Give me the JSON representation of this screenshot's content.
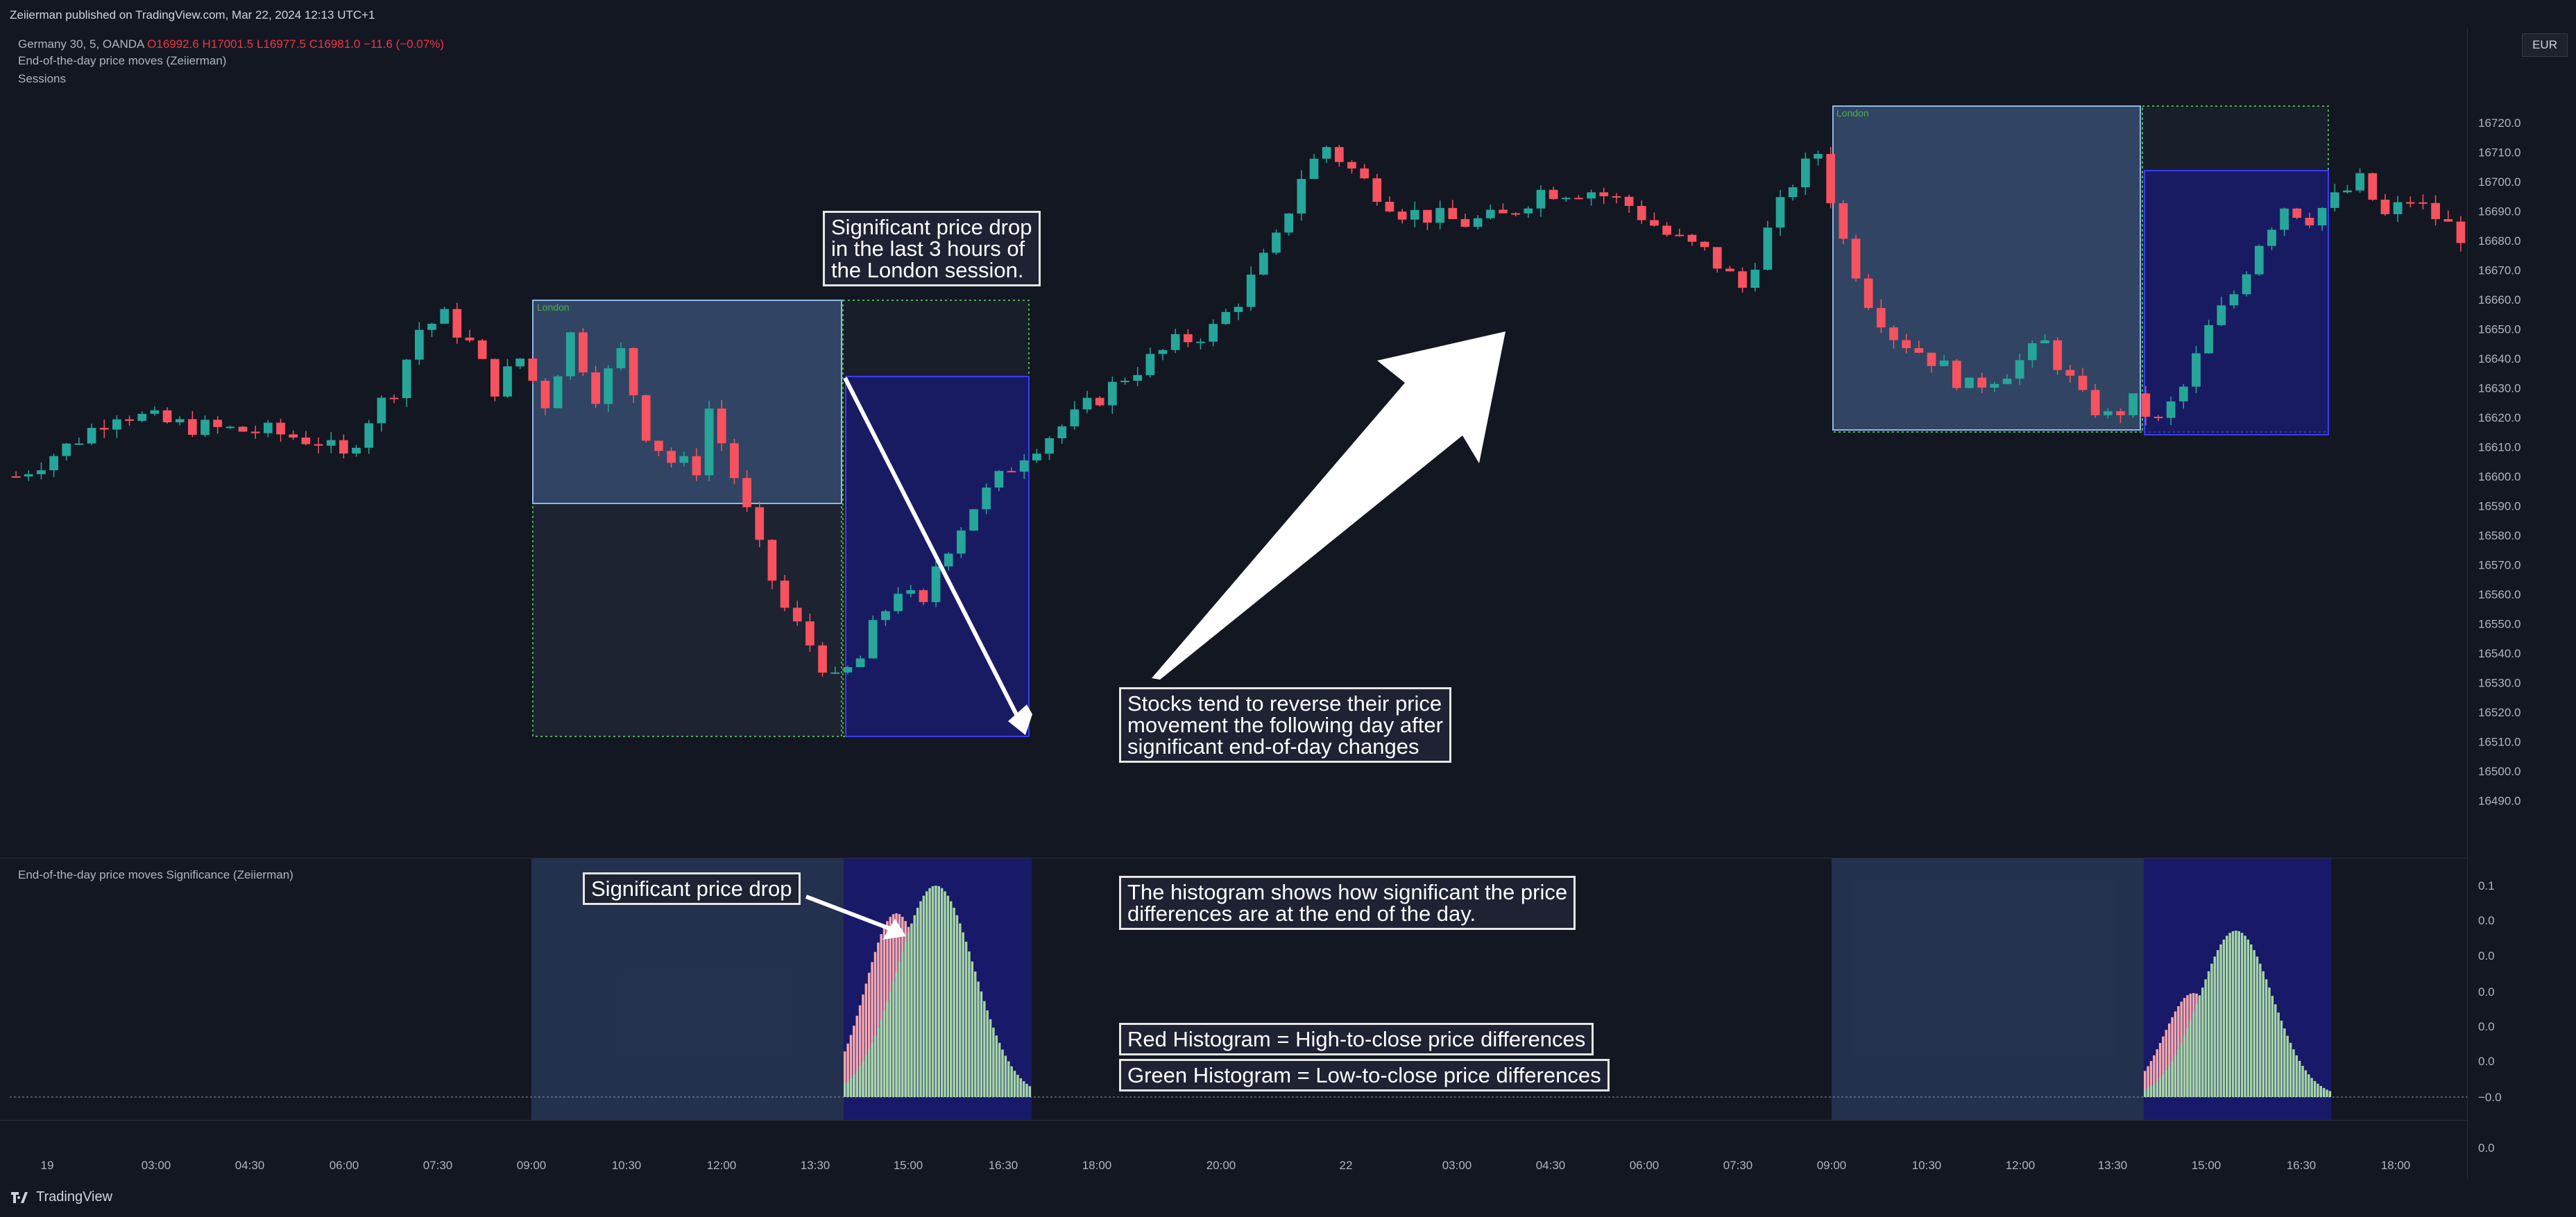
{
  "header": {
    "published": "Zeiierman published on TradingView.com, Mar 22, 2024 12:13 UTC+1"
  },
  "legend": {
    "symbol": "Germany 30, 5, OANDA",
    "ohlc": "O16992.6 H17001.5 L16977.5 C16981.0 −11.6 (−0.07%)",
    "indicator1": "End-of-the-day price moves (Zeiierman)",
    "indicator2": "Sessions",
    "pane2_title": "End-of-the-day price moves Significance (Zeiierman)"
  },
  "currency": "EUR",
  "annotations": {
    "drop3h": "Significant price drop\nin the last 3 hours of\nthe London session.",
    "reverse": "Stocks tend to reverse their price\nmovement the following day after\nsignificant end-of-day changes",
    "sigdrop": "Significant price drop",
    "histo_explain": "The histogram shows how significant the price\ndifferences are at the end of the day.",
    "red_histo": "Red Histogram =  High-to-close price differences",
    "green_histo": "Green Histogram =  Low-to-close price differences"
  },
  "brand": {
    "name": "TradingView"
  },
  "colors": {
    "bg": "#131722",
    "up": "#26a69a",
    "down": "#f7525f",
    "session_box": "#3f5a85",
    "session_box_border": "#8fb8e6",
    "blue_box": "#1a1a7a",
    "blue_box_border": "#3a3aff",
    "hist_green": "#a5d6a7",
    "hist_red": "#f4a6ae",
    "session_label": "#4caf50"
  },
  "chart_data": [
    {
      "type": "candlestick",
      "title": "",
      "ylabel": "",
      "y_ticks": [
        "16720.0",
        "16710.0",
        "16700.0",
        "16690.0",
        "16680.0",
        "16670.0",
        "16660.0",
        "16650.0",
        "16640.0",
        "16630.0",
        "16620.0",
        "16610.0",
        "16600.0",
        "16590.0",
        "16580.0",
        "16570.0",
        "16560.0",
        "16550.0",
        "16540.0",
        "16530.0",
        "16520.0",
        "16510.0",
        "16500.0",
        "16490.0"
      ],
      "ylim": [
        16487,
        16728
      ],
      "x_ticks": [
        "19",
        "03:00",
        "04:30",
        "06:00",
        "07:30",
        "09:00",
        "10:30",
        "12:00",
        "13:30",
        "15:00",
        "16:30",
        "18:00",
        "20:00",
        "22",
        "03:00",
        "04:30",
        "06:00",
        "07:30",
        "09:00",
        "10:30",
        "12:00",
        "13:30",
        "15:00",
        "16:30",
        "18:00"
      ],
      "sessions": [
        {
          "label": "London"
        },
        {
          "label": "London"
        }
      ],
      "close_path": [
        [
          0,
          16600
        ],
        [
          4,
          16610
        ],
        [
          8,
          16622
        ],
        [
          12,
          16618
        ],
        [
          16,
          16616
        ],
        [
          20,
          16615
        ],
        [
          24,
          16612
        ],
        [
          26,
          16606
        ],
        [
          28,
          16620
        ],
        [
          30,
          16630
        ],
        [
          32,
          16650
        ],
        [
          34,
          16654
        ],
        [
          36,
          16645
        ],
        [
          38,
          16630
        ],
        [
          40,
          16640
        ],
        [
          42,
          16625
        ],
        [
          44,
          16648
        ],
        [
          46,
          16628
        ],
        [
          48,
          16642
        ],
        [
          50,
          16615
        ],
        [
          52,
          16605
        ],
        [
          54,
          16603
        ],
        [
          55,
          16623
        ],
        [
          57,
          16600
        ],
        [
          59,
          16575
        ],
        [
          61,
          16555
        ],
        [
          63,
          16543
        ],
        [
          65,
          16530
        ],
        [
          67,
          16538
        ],
        [
          68,
          16548
        ],
        [
          70,
          16562
        ],
        [
          72,
          16555
        ],
        [
          73,
          16570
        ],
        [
          76,
          16590
        ],
        [
          80,
          16608
        ],
        [
          84,
          16620
        ],
        [
          88,
          16634
        ],
        [
          92,
          16645
        ],
        [
          95,
          16650
        ],
        [
          97,
          16660
        ],
        [
          100,
          16680
        ],
        [
          102,
          16702
        ],
        [
          104,
          16712
        ],
        [
          107,
          16700
        ],
        [
          110,
          16690
        ],
        [
          115,
          16686
        ],
        [
          118,
          16688
        ],
        [
          121,
          16697
        ],
        [
          125,
          16697
        ],
        [
          128,
          16692
        ],
        [
          131,
          16682
        ],
        [
          134,
          16676
        ],
        [
          137,
          16664
        ],
        [
          139,
          16683
        ],
        [
          141,
          16700
        ],
        [
          143,
          16710
        ],
        [
          145,
          16680
        ],
        [
          147,
          16660
        ],
        [
          149,
          16648
        ],
        [
          152,
          16640
        ],
        [
          155,
          16630
        ],
        [
          158,
          16636
        ],
        [
          161,
          16645
        ],
        [
          164,
          16626
        ],
        [
          166,
          16620
        ],
        [
          168,
          16625
        ],
        [
          170,
          16618
        ],
        [
          172,
          16630
        ],
        [
          174,
          16650
        ],
        [
          176,
          16662
        ],
        [
          178,
          16680
        ],
        [
          180,
          16692
        ],
        [
          182,
          16688
        ],
        [
          184,
          16694
        ],
        [
          186,
          16700
        ],
        [
          188,
          16688
        ],
        [
          190,
          16694
        ],
        [
          192,
          16688
        ],
        [
          194,
          16682
        ]
      ]
    },
    {
      "type": "bar",
      "title": "",
      "y_ticks": [
        "0.1",
        "0.0",
        "0.0",
        "0.0",
        "0.0",
        "0.0",
        "−0.0",
        "0.0"
      ],
      "series": []
    }
  ]
}
